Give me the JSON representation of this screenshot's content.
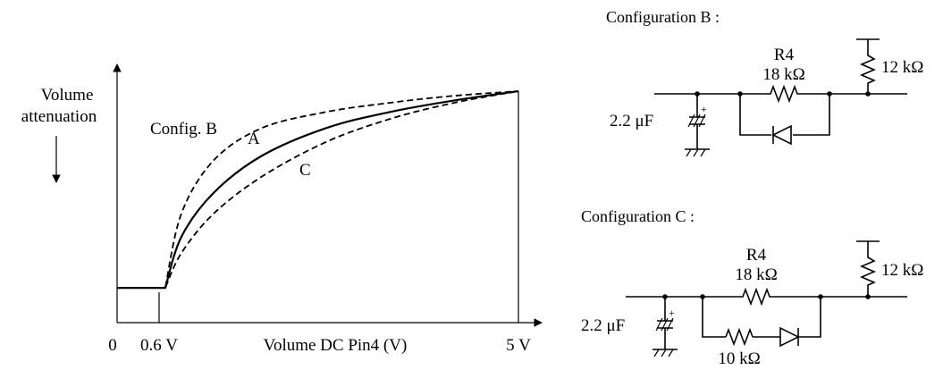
{
  "chart": {
    "ylabel_line1": "Volume",
    "ylabel_line2": "attenuation",
    "xlabel": "Volume DC Pin4 (V)",
    "tick_0": "0",
    "tick_06": "0.6 V",
    "tick_5": "5 V",
    "curve_b_label": "Config. B",
    "curve_a_label": "A",
    "curve_c_label": "C"
  },
  "config_b": {
    "title": "Configuration B :",
    "r4_name": "R4",
    "r4_value": "18 kΩ",
    "pullup_value": "12 kΩ",
    "cap_value": "2.2 μF",
    "cap_polarity": "+"
  },
  "config_c": {
    "title": "Configuration C :",
    "r4_name": "R4",
    "r4_value": "18 kΩ",
    "pullup_value": "12 kΩ",
    "cap_value": "2.2 μF",
    "cap_polarity": "+",
    "series_r_value": "10 kΩ"
  },
  "chart_data": {
    "type": "line",
    "title": "",
    "xlabel": "Volume DC Pin4 (V)",
    "ylabel": "Volume attenuation",
    "x_ticks": [
      "0",
      "0.6 V",
      "5 V"
    ],
    "series": [
      {
        "name": "Config. B",
        "style": "dashed",
        "x": [
          0,
          0.6,
          0.8,
          1.2,
          1.8,
          2.6,
          3.4,
          4.2,
          5.0
        ],
        "y": [
          0.15,
          0.15,
          0.47,
          0.7,
          0.84,
          0.91,
          0.95,
          0.98,
          1.0
        ]
      },
      {
        "name": "A",
        "style": "solid",
        "x": [
          0,
          0.6,
          0.8,
          1.2,
          1.8,
          2.6,
          3.4,
          4.2,
          5.0
        ],
        "y": [
          0.15,
          0.15,
          0.37,
          0.56,
          0.72,
          0.84,
          0.91,
          0.96,
          1.0
        ]
      },
      {
        "name": "C",
        "style": "dashed",
        "x": [
          0,
          0.6,
          0.8,
          1.2,
          1.8,
          2.6,
          3.4,
          4.2,
          5.0
        ],
        "y": [
          0.15,
          0.15,
          0.3,
          0.47,
          0.63,
          0.78,
          0.88,
          0.95,
          1.0
        ]
      }
    ],
    "xlim": [
      0,
      5
    ],
    "ylim": [
      0,
      1
    ],
    "grid": false,
    "legend": "inline labels"
  }
}
